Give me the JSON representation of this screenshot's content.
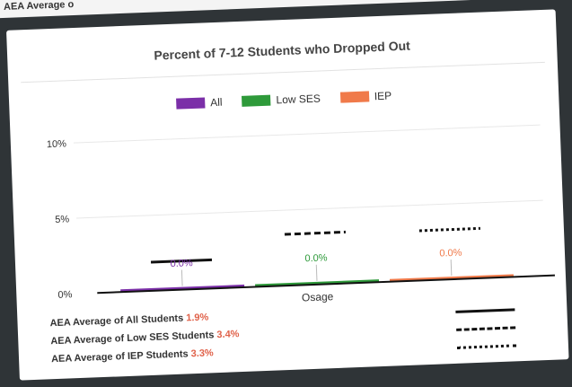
{
  "header": {
    "partial_text": "AEA Average o"
  },
  "chart_data": {
    "type": "bar",
    "title": "Percent of 7-12 Students who Dropped Out",
    "categories": [
      "Osage"
    ],
    "series": [
      {
        "name": "All",
        "color": "#7b2fa8",
        "values": [
          0.0
        ],
        "labels": [
          "0.0%"
        ],
        "aea_average": 1.9
      },
      {
        "name": "Low SES",
        "color": "#2e9a3a",
        "values": [
          0.0
        ],
        "labels": [
          "0.0%"
        ],
        "aea_average": 3.4
      },
      {
        "name": "IEP",
        "color": "#f07a4a",
        "values": [
          0.0
        ],
        "labels": [
          "0.0%"
        ],
        "aea_average": 3.3
      }
    ],
    "yticks": [
      {
        "value": 0,
        "label": "0%"
      },
      {
        "value": 5,
        "label": "5%"
      },
      {
        "value": 10,
        "label": "10%"
      }
    ],
    "ylim": [
      0,
      10
    ],
    "grid": true,
    "legend_position": "top-center"
  },
  "footnotes": [
    {
      "text": "AEA Average of All Students",
      "value": "1.9%",
      "line_style": "solid"
    },
    {
      "text": "AEA Average of Low SES Students",
      "value": "3.4%",
      "line_style": "dashed"
    },
    {
      "text": "AEA Average of IEP Students",
      "value": "3.3%",
      "line_style": "dotted"
    }
  ]
}
